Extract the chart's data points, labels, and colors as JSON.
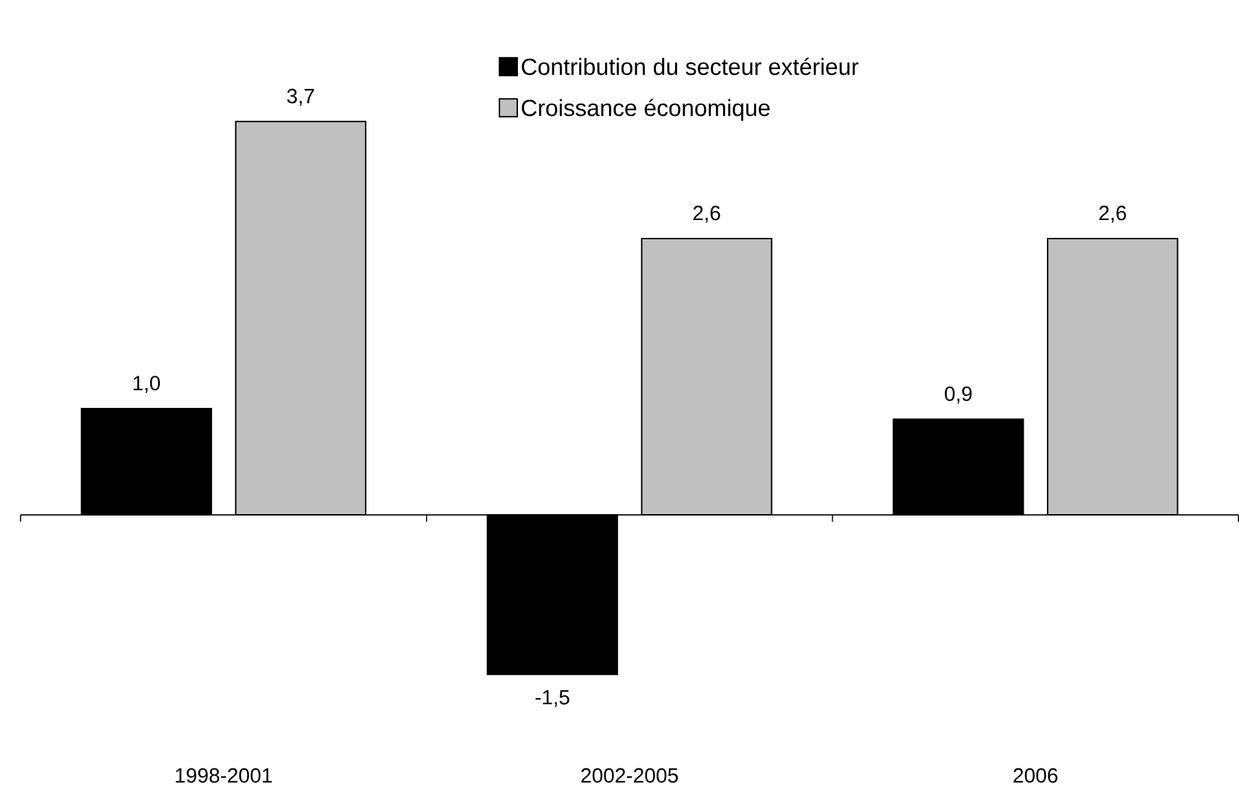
{
  "chart_data": {
    "type": "bar",
    "categories": [
      "1998-2001",
      "2002-2005",
      "2006"
    ],
    "series": [
      {
        "name": "Contribution du secteur extérieur",
        "color": "#000000",
        "values": [
          1.0,
          -1.5,
          0.9
        ],
        "value_labels": [
          "1,0",
          "-1,5",
          "0,9"
        ]
      },
      {
        "name": "Croissance économique",
        "color": "#c0c0c0",
        "values": [
          3.7,
          2.6,
          2.6
        ],
        "value_labels": [
          "3,7",
          "2,6",
          "2,6"
        ]
      }
    ],
    "legend": "top"
  }
}
